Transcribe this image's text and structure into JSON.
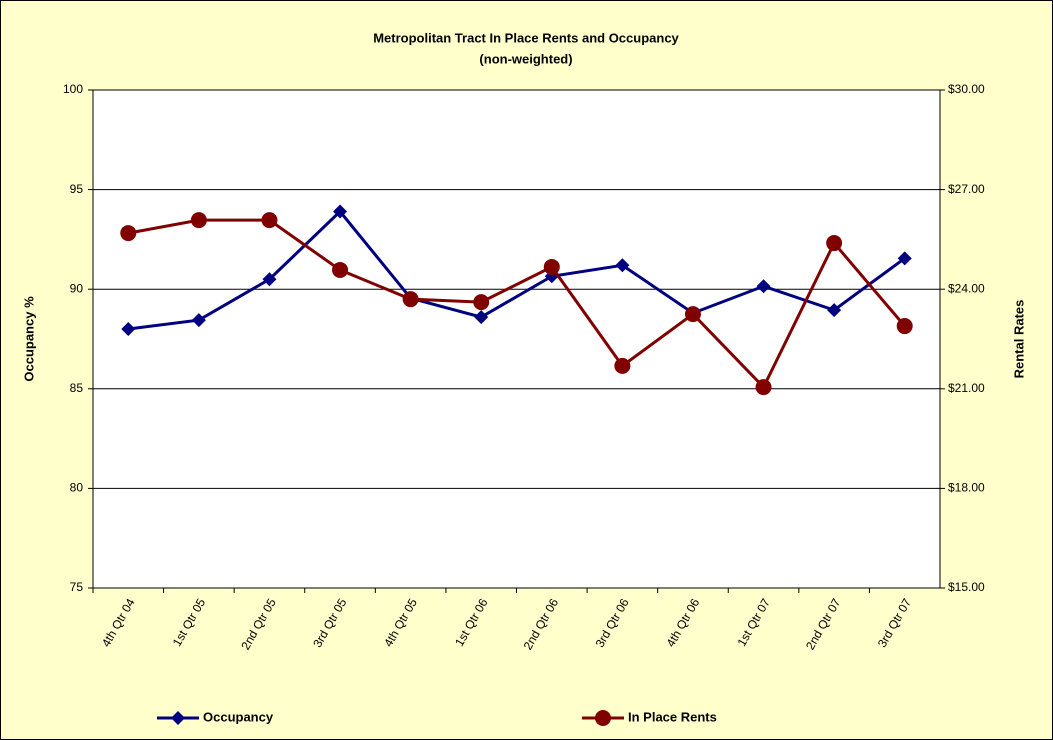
{
  "chart_data": {
    "type": "line",
    "title": "Metropolitan Tract In Place Rents and Occupancy",
    "subtitle": "(non-weighted)",
    "y_label": "Occupancy %",
    "y2_label": "Rental Rates",
    "categories": [
      "4th Qtr 04",
      "1st Qtr 05",
      "2nd Qtr 05",
      "3rd Qtr 05",
      "4th Qtr 05",
      "1st Qtr 06",
      "2nd Qtr 06",
      "3rd Qtr 06",
      "4th Qtr 06",
      "1st Qtr 07",
      "2nd Qtr 07",
      "3rd Qtr 07"
    ],
    "series": [
      {
        "name": "Occupancy",
        "color": "#000080",
        "marker": "diamond",
        "values": [
          88.0,
          88.45,
          90.5,
          93.9,
          89.55,
          88.6,
          90.65,
          91.2,
          88.8,
          90.15,
          88.95,
          91.55
        ]
      },
      {
        "name": "In Place Rents",
        "color": "#800000",
        "marker": "circle",
        "axis": "y2",
        "values": [
          25.69,
          26.08,
          26.08,
          24.58,
          23.7,
          23.61,
          24.67,
          21.69,
          23.25,
          21.05,
          25.39,
          22.89
        ]
      }
    ],
    "ylim": [
      75,
      100
    ],
    "yticks": [
      75,
      80,
      85,
      90,
      95,
      100
    ],
    "y2lim": [
      15,
      30
    ],
    "y2ticks": [
      {
        "value": 15,
        "label": "$15.00"
      },
      {
        "value": 18,
        "label": "$18.00"
      },
      {
        "value": 21,
        "label": "$21.00"
      },
      {
        "value": 24,
        "label": "$24.00"
      },
      {
        "value": 27,
        "label": "$27.00"
      },
      {
        "value": 30,
        "label": "$30.00"
      }
    ],
    "grid": true,
    "legend": "bottom"
  }
}
